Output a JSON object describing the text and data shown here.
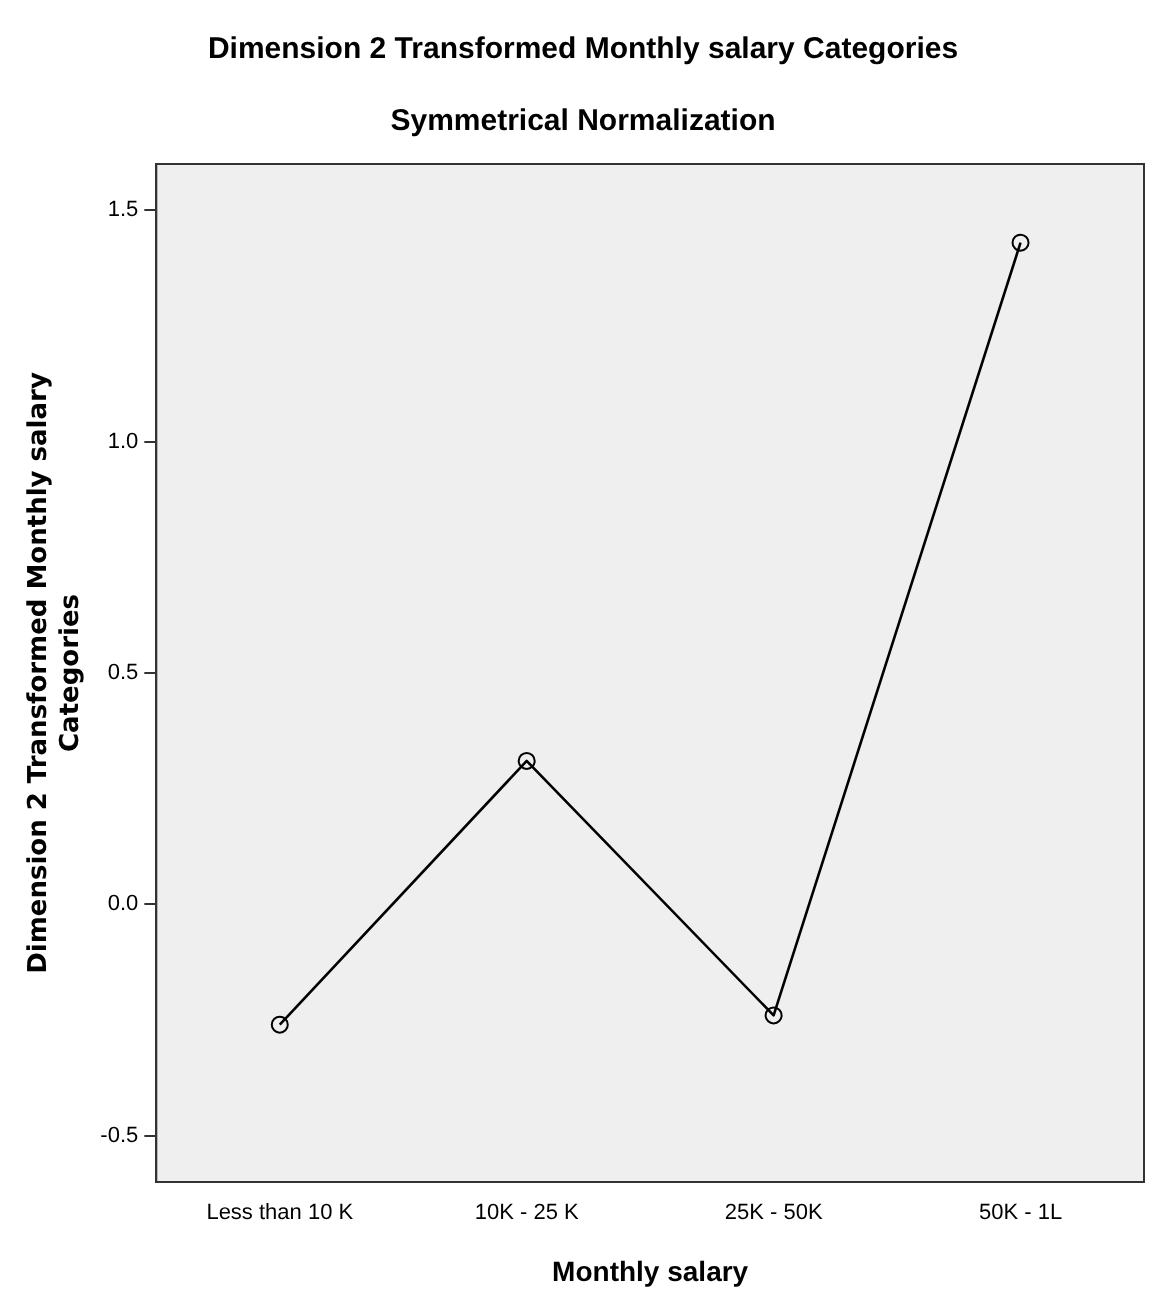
{
  "chart_data": {
    "type": "line",
    "title": "Dimension 2 Transformed Monthly salary Categories",
    "subtitle": "Symmetrical Normalization",
    "xlabel": "Monthly salary",
    "ylabel": "Dimension 2 Transformed Monthly salary\nCategories",
    "categories": [
      "Less than 10 K",
      "10K - 25 K",
      "25K - 50K",
      "50K - 1L"
    ],
    "series": [
      {
        "color": "#000000",
        "values": [
          -0.26,
          0.31,
          -0.24,
          1.43
        ]
      }
    ],
    "ylim": [
      -0.6,
      1.6
    ],
    "yticks": [
      {
        "value": -0.5,
        "label": "-0.5"
      },
      {
        "value": 0,
        "label": "0.0"
      },
      {
        "value": 0.5,
        "label": "0.5"
      },
      {
        "value": 1,
        "label": "1.0"
      },
      {
        "value": 1.5,
        "label": "1.5"
      }
    ],
    "grid": false,
    "legend": false,
    "marker": "circle",
    "line_style": "solid"
  }
}
